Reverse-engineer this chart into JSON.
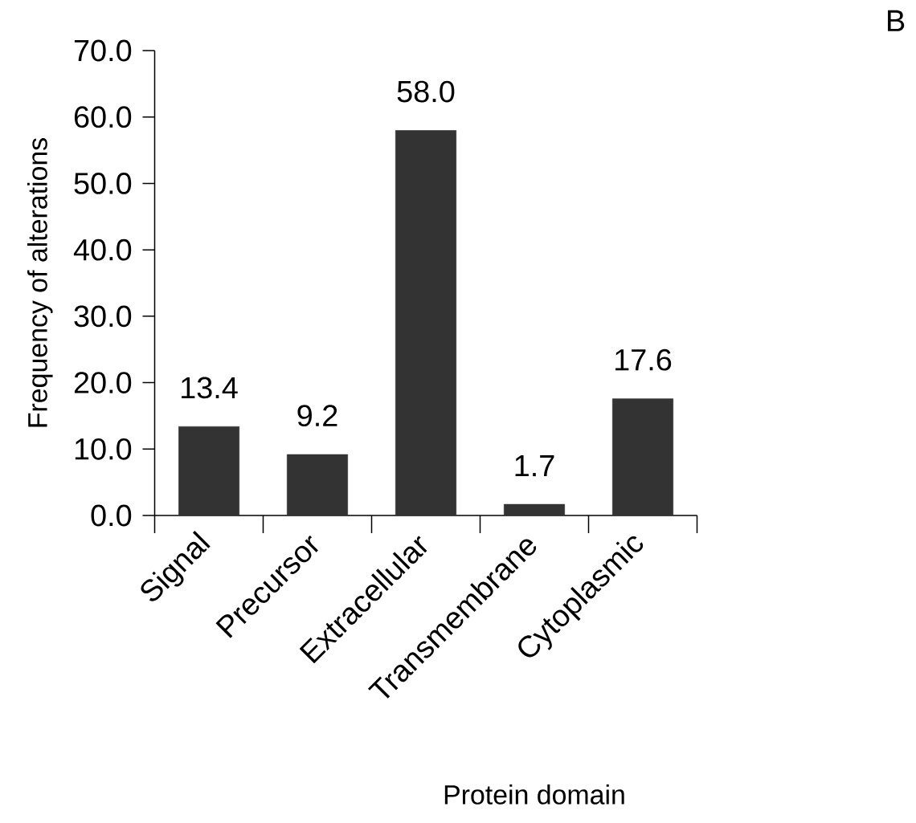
{
  "chart_data": {
    "type": "bar",
    "xlabel": "Protein domain",
    "ylabel": "Frequency of alterations",
    "annotations": [
      "B"
    ],
    "categories": [
      "Signal",
      "Precursor",
      "Extracellular",
      "Transmembrane",
      "Cytoplasmic"
    ],
    "values": [
      13.4,
      9.2,
      58.0,
      1.7,
      17.6
    ],
    "value_labels": [
      "13.4",
      "9.2",
      "58.0",
      "1.7",
      "17.6"
    ],
    "color": "#333333",
    "ylim": [
      0,
      70
    ],
    "yticks": [
      {
        "value": 0,
        "label": "0.0"
      },
      {
        "value": 10,
        "label": "10.0"
      },
      {
        "value": 20,
        "label": "20.0"
      },
      {
        "value": 30,
        "label": "30.0"
      },
      {
        "value": 40,
        "label": "40.0"
      },
      {
        "value": 50,
        "label": "50.0"
      },
      {
        "value": 60,
        "label": "60.0"
      },
      {
        "value": 70,
        "label": "70.0"
      }
    ],
    "grid": false
  }
}
